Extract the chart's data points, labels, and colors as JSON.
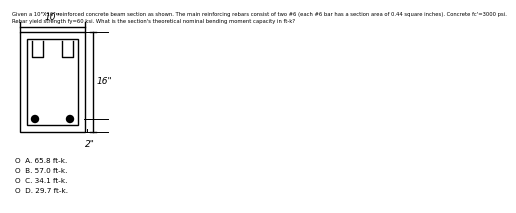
{
  "title_line1": "Given a 10\"X16\" reinforced concrete beam section as shown. The main reinforcing rebars consist of two #6 (each #6 bar has a section area of 0.44 square inches). Concrete fc'=3000 psi.",
  "title_line2": "Rebar yield strength fy=60 ksi. What is the section's theoretical nominal bending moment capacity in ft-k?",
  "choices": [
    "A. 65.8 ft-k.",
    "B. 57.0 ft-k.",
    "C. 34.1 ft-k.",
    "D. 29.7 ft-k."
  ],
  "bg_color": "#ffffff",
  "text_color": "#000000",
  "line_color": "#000000",
  "dim_label_10": "10\"",
  "dim_label_16": "16\"",
  "dim_label_2": "2\""
}
